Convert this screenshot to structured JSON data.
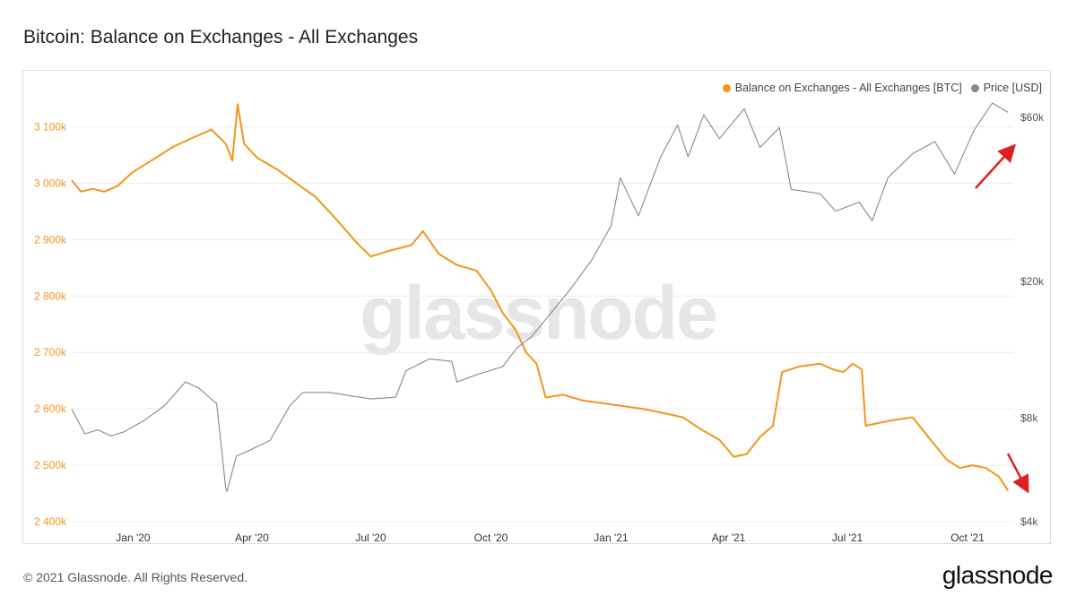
{
  "title": "Bitcoin: Balance on Exchanges - All Exchanges",
  "footer": "© 2021 Glassnode. All Rights Reserved.",
  "brand": "glassnode",
  "watermark": "glassnode",
  "legend": [
    {
      "label": "Balance on Exchanges - All Exchanges [BTC]",
      "color": "#f7931a"
    },
    {
      "label": "Price [USD]",
      "color": "#888888"
    }
  ],
  "chart_data": {
    "type": "line",
    "x_tick_labels": [
      "Jan '20",
      "Apr '20",
      "Jul '20",
      "Oct '20",
      "Jan '21",
      "Apr '21",
      "Jul '21",
      "Oct '21"
    ],
    "x_tick_dates": [
      "2020-01-01",
      "2020-04-01",
      "2020-07-01",
      "2020-10-01",
      "2021-01-01",
      "2021-04-01",
      "2021-07-01",
      "2021-10-01"
    ],
    "x_range": [
      "2019-11-15",
      "2021-11-05"
    ],
    "y_left": {
      "ticks": [
        2400000,
        2500000,
        2600000,
        2700000,
        2800000,
        2900000,
        3000000,
        3100000
      ],
      "tick_labels": [
        "2 400k",
        "2 500k",
        "2 600k",
        "2 700k",
        "2 800k",
        "2 900k",
        "3 000k",
        "3 100k"
      ],
      "range": [
        2400000,
        3150000
      ],
      "color": "#f7931a"
    },
    "y_right": {
      "scale": "log",
      "ticks": [
        4000,
        8000,
        20000,
        60000
      ],
      "tick_labels": [
        "$4k",
        "$8k",
        "$20k",
        "$60k"
      ],
      "range": [
        4000,
        68000
      ],
      "color": "#555555"
    },
    "grid": true,
    "legend_position": "top-right",
    "series": [
      {
        "name": "Balance on Exchanges - All Exchanges [BTC]",
        "axis": "left",
        "color": "#f7931a",
        "points": [
          [
            "2019-11-15",
            3005000
          ],
          [
            "2019-11-22",
            2985000
          ],
          [
            "2019-12-01",
            2990000
          ],
          [
            "2019-12-10",
            2985000
          ],
          [
            "2019-12-20",
            2995000
          ],
          [
            "2020-01-01",
            3020000
          ],
          [
            "2020-01-15",
            3040000
          ],
          [
            "2020-02-01",
            3065000
          ],
          [
            "2020-02-15",
            3080000
          ],
          [
            "2020-03-01",
            3095000
          ],
          [
            "2020-03-12",
            3070000
          ],
          [
            "2020-03-17",
            3040000
          ],
          [
            "2020-03-21",
            3140000
          ],
          [
            "2020-03-26",
            3070000
          ],
          [
            "2020-04-05",
            3045000
          ],
          [
            "2020-04-20",
            3025000
          ],
          [
            "2020-05-05",
            3000000
          ],
          [
            "2020-05-20",
            2975000
          ],
          [
            "2020-06-05",
            2935000
          ],
          [
            "2020-06-20",
            2895000
          ],
          [
            "2020-07-01",
            2870000
          ],
          [
            "2020-07-15",
            2880000
          ],
          [
            "2020-08-01",
            2890000
          ],
          [
            "2020-08-10",
            2915000
          ],
          [
            "2020-08-22",
            2875000
          ],
          [
            "2020-09-05",
            2855000
          ],
          [
            "2020-09-20",
            2845000
          ],
          [
            "2020-10-01",
            2810000
          ],
          [
            "2020-10-10",
            2770000
          ],
          [
            "2020-10-20",
            2740000
          ],
          [
            "2020-10-28",
            2700000
          ],
          [
            "2020-11-05",
            2680000
          ],
          [
            "2020-11-12",
            2620000
          ],
          [
            "2020-11-25",
            2625000
          ],
          [
            "2020-12-10",
            2615000
          ],
          [
            "2020-12-25",
            2610000
          ],
          [
            "2021-01-10",
            2605000
          ],
          [
            "2021-01-25",
            2600000
          ],
          [
            "2021-02-05",
            2595000
          ],
          [
            "2021-02-15",
            2590000
          ],
          [
            "2021-02-25",
            2585000
          ],
          [
            "2021-03-10",
            2565000
          ],
          [
            "2021-03-25",
            2545000
          ],
          [
            "2021-04-05",
            2515000
          ],
          [
            "2021-04-15",
            2520000
          ],
          [
            "2021-04-25",
            2550000
          ],
          [
            "2021-05-05",
            2570000
          ],
          [
            "2021-05-12",
            2665000
          ],
          [
            "2021-05-25",
            2675000
          ],
          [
            "2021-06-10",
            2680000
          ],
          [
            "2021-06-20",
            2670000
          ],
          [
            "2021-06-28",
            2665000
          ],
          [
            "2021-07-05",
            2680000
          ],
          [
            "2021-07-12",
            2670000
          ],
          [
            "2021-07-15",
            2570000
          ],
          [
            "2021-07-25",
            2575000
          ],
          [
            "2021-08-05",
            2580000
          ],
          [
            "2021-08-20",
            2585000
          ],
          [
            "2021-09-01",
            2550000
          ],
          [
            "2021-09-15",
            2510000
          ],
          [
            "2021-09-25",
            2495000
          ],
          [
            "2021-10-05",
            2500000
          ],
          [
            "2021-10-15",
            2495000
          ],
          [
            "2021-10-25",
            2480000
          ],
          [
            "2021-11-01",
            2455000
          ]
        ]
      },
      {
        "name": "Price [USD]",
        "axis": "right",
        "color": "#888888",
        "points": [
          [
            "2019-11-15",
            8500
          ],
          [
            "2019-11-25",
            7200
          ],
          [
            "2019-12-05",
            7400
          ],
          [
            "2019-12-15",
            7100
          ],
          [
            "2019-12-25",
            7300
          ],
          [
            "2020-01-10",
            7900
          ],
          [
            "2020-01-25",
            8700
          ],
          [
            "2020-02-10",
            10200
          ],
          [
            "2020-02-20",
            9800
          ],
          [
            "2020-03-05",
            8800
          ],
          [
            "2020-03-12",
            5000
          ],
          [
            "2020-03-13",
            4900
          ],
          [
            "2020-03-20",
            6200
          ],
          [
            "2020-04-01",
            6500
          ],
          [
            "2020-04-15",
            6900
          ],
          [
            "2020-04-30",
            8700
          ],
          [
            "2020-05-10",
            9500
          ],
          [
            "2020-05-31",
            9500
          ],
          [
            "2020-06-15",
            9300
          ],
          [
            "2020-07-01",
            9100
          ],
          [
            "2020-07-20",
            9200
          ],
          [
            "2020-07-28",
            11000
          ],
          [
            "2020-08-15",
            11900
          ],
          [
            "2020-09-01",
            11700
          ],
          [
            "2020-09-05",
            10200
          ],
          [
            "2020-09-20",
            10700
          ],
          [
            "2020-10-10",
            11300
          ],
          [
            "2020-10-21",
            12800
          ],
          [
            "2020-11-01",
            13800
          ],
          [
            "2020-11-15",
            16000
          ],
          [
            "2020-12-01",
            19000
          ],
          [
            "2020-12-17",
            23000
          ],
          [
            "2021-01-01",
            29000
          ],
          [
            "2021-01-08",
            40000
          ],
          [
            "2021-01-22",
            31000
          ],
          [
            "2021-02-08",
            46000
          ],
          [
            "2021-02-21",
            57000
          ],
          [
            "2021-03-01",
            46000
          ],
          [
            "2021-03-13",
            61000
          ],
          [
            "2021-03-25",
            52000
          ],
          [
            "2021-04-13",
            63500
          ],
          [
            "2021-04-25",
            49000
          ],
          [
            "2021-05-10",
            56000
          ],
          [
            "2021-05-19",
            37000
          ],
          [
            "2021-06-10",
            36000
          ],
          [
            "2021-06-22",
            32000
          ],
          [
            "2021-07-10",
            34000
          ],
          [
            "2021-07-20",
            30000
          ],
          [
            "2021-08-01",
            40000
          ],
          [
            "2021-08-20",
            47000
          ],
          [
            "2021-09-06",
            51000
          ],
          [
            "2021-09-21",
            41000
          ],
          [
            "2021-10-06",
            55000
          ],
          [
            "2021-10-20",
            66000
          ],
          [
            "2021-11-01",
            62000
          ]
        ]
      }
    ]
  }
}
